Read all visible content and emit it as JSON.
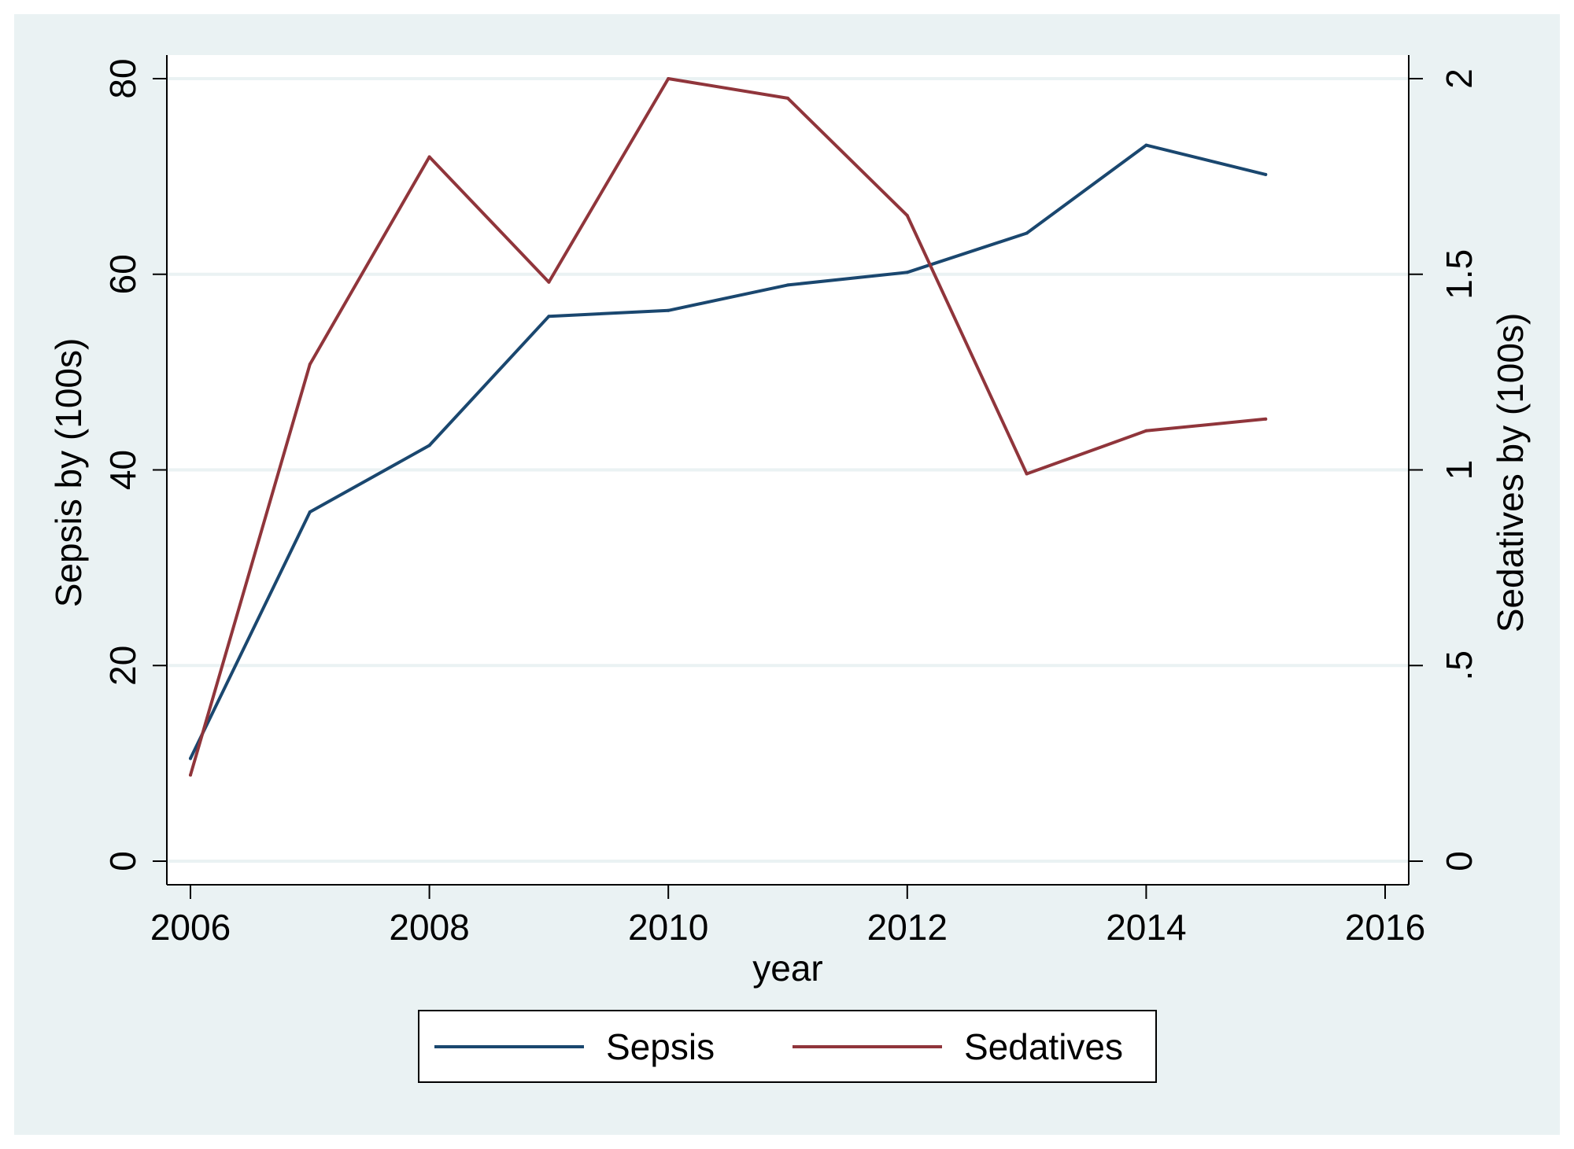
{
  "chart_data": {
    "type": "line",
    "x": [
      2006,
      2007,
      2008,
      2009,
      2010,
      2011,
      2012,
      2013,
      2014,
      2015
    ],
    "series": [
      {
        "name": "Sepsis",
        "axis": "left",
        "color": "#1a476f",
        "values": [
          10.5,
          35.7,
          42.5,
          55.7,
          56.3,
          58.9,
          60.2,
          64.2,
          73.2,
          70.2
        ]
      },
      {
        "name": "Sedatives",
        "axis": "right",
        "color": "#90353b",
        "values": [
          0.22,
          1.27,
          1.8,
          1.48,
          2.0,
          1.95,
          1.65,
          0.99,
          1.1,
          1.13
        ]
      }
    ],
    "xlabel": "year",
    "ylabel": "Sepsis by (100s)",
    "y2label": "Sedatives by (100s)",
    "xlim": [
      2006,
      2016
    ],
    "ylim": [
      0,
      80
    ],
    "y2lim": [
      0,
      2
    ],
    "xticks": [
      2006,
      2008,
      2010,
      2012,
      2014,
      2016
    ],
    "xtick_labels": [
      "2006",
      "2008",
      "2010",
      "2012",
      "2014",
      "2016"
    ],
    "yticks": [
      0,
      20,
      40,
      60,
      80
    ],
    "ytick_labels": [
      "0",
      "20",
      "40",
      "60",
      "80"
    ],
    "y2ticks": [
      0,
      0.5,
      1,
      1.5,
      2
    ],
    "y2tick_labels": [
      "0",
      ".5",
      "1",
      "1.5",
      "2"
    ],
    "grid": true,
    "legend_position": "bottom",
    "background_color": "#eaf2f3",
    "gridline_color": "#eaf2f3"
  }
}
